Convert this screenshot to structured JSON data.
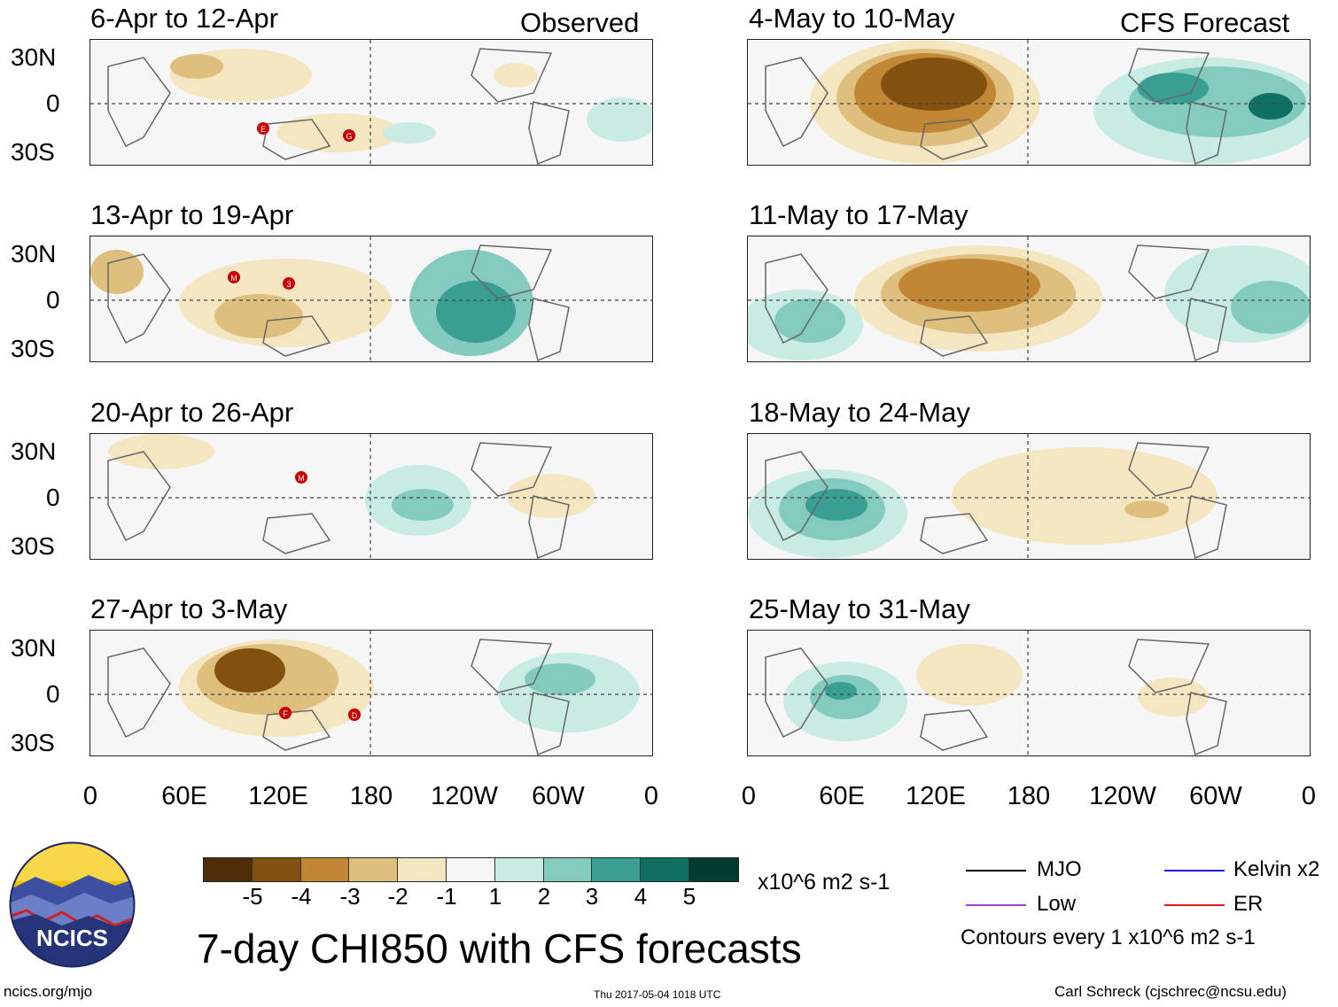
{
  "header": {
    "observed_label": "Observed",
    "forecast_label": "CFS Forecast"
  },
  "panels_left": [
    {
      "title": "6-Apr to 12-Apr"
    },
    {
      "title": "13-Apr to 19-Apr"
    },
    {
      "title": "20-Apr to 26-Apr"
    },
    {
      "title": "27-Apr to 3-May"
    }
  ],
  "panels_right": [
    {
      "title": "4-May to 10-May"
    },
    {
      "title": "11-May to 17-May"
    },
    {
      "title": "18-May to 24-May"
    },
    {
      "title": "25-May to 31-May"
    }
  ],
  "lat_labels": [
    "30N",
    "0",
    "30S"
  ],
  "lon_labels": [
    "0",
    "60E",
    "120E",
    "180",
    "120W",
    "60W",
    "0"
  ],
  "storm_markers": {
    "panel1": [
      "E",
      "G"
    ],
    "panel2": [
      "M",
      "3"
    ],
    "panel3": [
      "M"
    ],
    "panel4": [
      "F",
      "D"
    ]
  },
  "colorbar": {
    "colors": [
      "#4f2d08",
      "#83510f",
      "#c18735",
      "#dfbf7e",
      "#f5e6c2",
      "#f6f6f6",
      "#c8ebe4",
      "#84cbbf",
      "#3a9f93",
      "#0e6f62",
      "#003c30"
    ],
    "tick_labels": [
      "-5",
      "-4",
      "-3",
      "-2",
      "-1",
      "1",
      "2",
      "3",
      "4",
      "5"
    ],
    "units": "x10^6 m2 s-1"
  },
  "title": "7-day CHI850 with CFS forecasts",
  "legend": {
    "items": [
      {
        "label": "MJO",
        "color": "#000000"
      },
      {
        "label": "Kelvin x2",
        "color": "#1a1aff"
      },
      {
        "label": "Low",
        "color": "#a040e0"
      },
      {
        "label": "ER",
        "color": "#e02020"
      }
    ],
    "contours_note": "Contours every 1 x10^6 m2 s-1"
  },
  "logo": {
    "text": "NCICS"
  },
  "footer": {
    "url": "ncics.org/mjo",
    "timestamp": "Thu 2017-05-04 1018 UTC",
    "credit": "Carl Schreck (cjschrec@ncsu.edu)"
  }
}
